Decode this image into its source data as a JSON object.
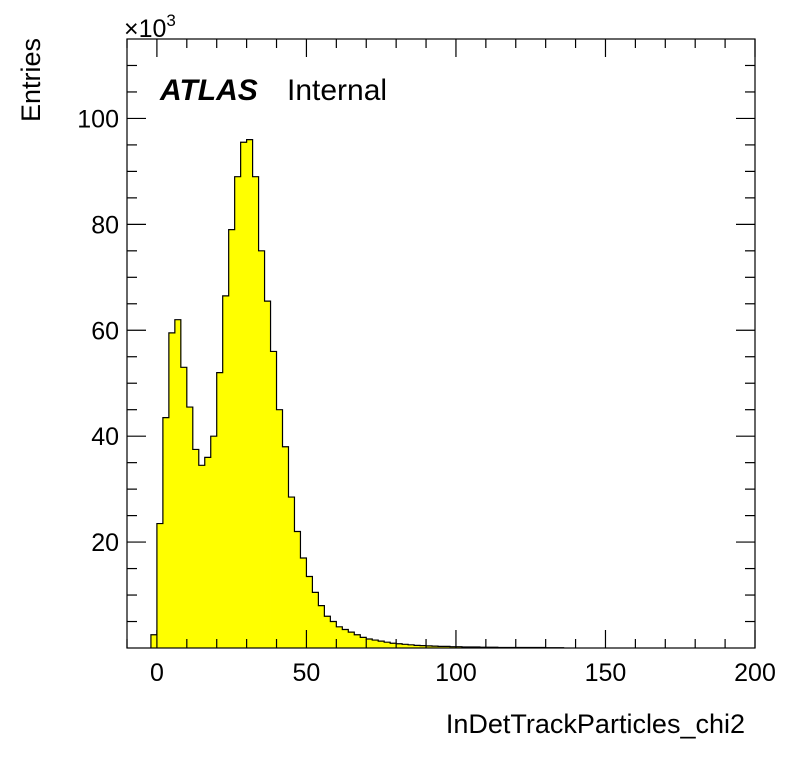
{
  "chart_data": {
    "type": "bar",
    "histogram": true,
    "xlabel": "InDetTrackParticles_chi2",
    "ylabel": "Entries",
    "y_multiplier": {
      "base": "×10",
      "exponent": "3"
    },
    "label_bold": "ATLAS",
    "label_text": "Internal",
    "xlim": [
      -10,
      200
    ],
    "ylim": [
      0,
      115
    ],
    "x_major_ticks": [
      0,
      50,
      100,
      150,
      200
    ],
    "x_tick_labels": [
      "0",
      "50",
      "100",
      "150",
      "200"
    ],
    "y_major_ticks": [
      20,
      40,
      60,
      80,
      100
    ],
    "y_tick_labels": [
      "20",
      "40",
      "60",
      "80",
      "100"
    ],
    "bin_width": 2,
    "fill_color": "#ffff00",
    "line_color": "#000000",
    "bins_low_edge": [
      -2,
      0,
      2,
      4,
      6,
      8,
      10,
      12,
      14,
      16,
      18,
      20,
      22,
      24,
      26,
      28,
      30,
      32,
      34,
      36,
      38,
      40,
      42,
      44,
      46,
      48,
      50,
      52,
      54,
      56,
      58,
      60,
      62,
      64,
      66,
      68,
      70,
      72,
      74,
      76,
      78,
      80,
      82,
      84,
      86,
      88,
      90,
      92,
      94,
      96,
      98,
      100,
      102,
      104,
      106,
      108,
      110,
      112,
      114,
      116,
      118,
      120,
      122,
      124,
      126,
      128,
      130,
      132,
      134
    ],
    "values": [
      2.5,
      23.5,
      43.5,
      59.5,
      62,
      53,
      45.5,
      37.5,
      34.5,
      36,
      40,
      52,
      66.5,
      79,
      89,
      95.5,
      96,
      89,
      75,
      65.5,
      56,
      45,
      38,
      28.5,
      22,
      17,
      13.5,
      10.5,
      8,
      6,
      5,
      4,
      3.5,
      3,
      2.5,
      2,
      1.7,
      1.5,
      1.3,
      1.1,
      0.9,
      0.8,
      0.7,
      0.6,
      0.5,
      0.45,
      0.4,
      0.35,
      0.3,
      0.3,
      0.25,
      0.25,
      0.2,
      0.2,
      0.2,
      0.15,
      0.15,
      0.15,
      0.1,
      0.1,
      0.1,
      0.1,
      0.1,
      0.1,
      0.1,
      0.1,
      0.05,
      0.05,
      0.05
    ]
  }
}
